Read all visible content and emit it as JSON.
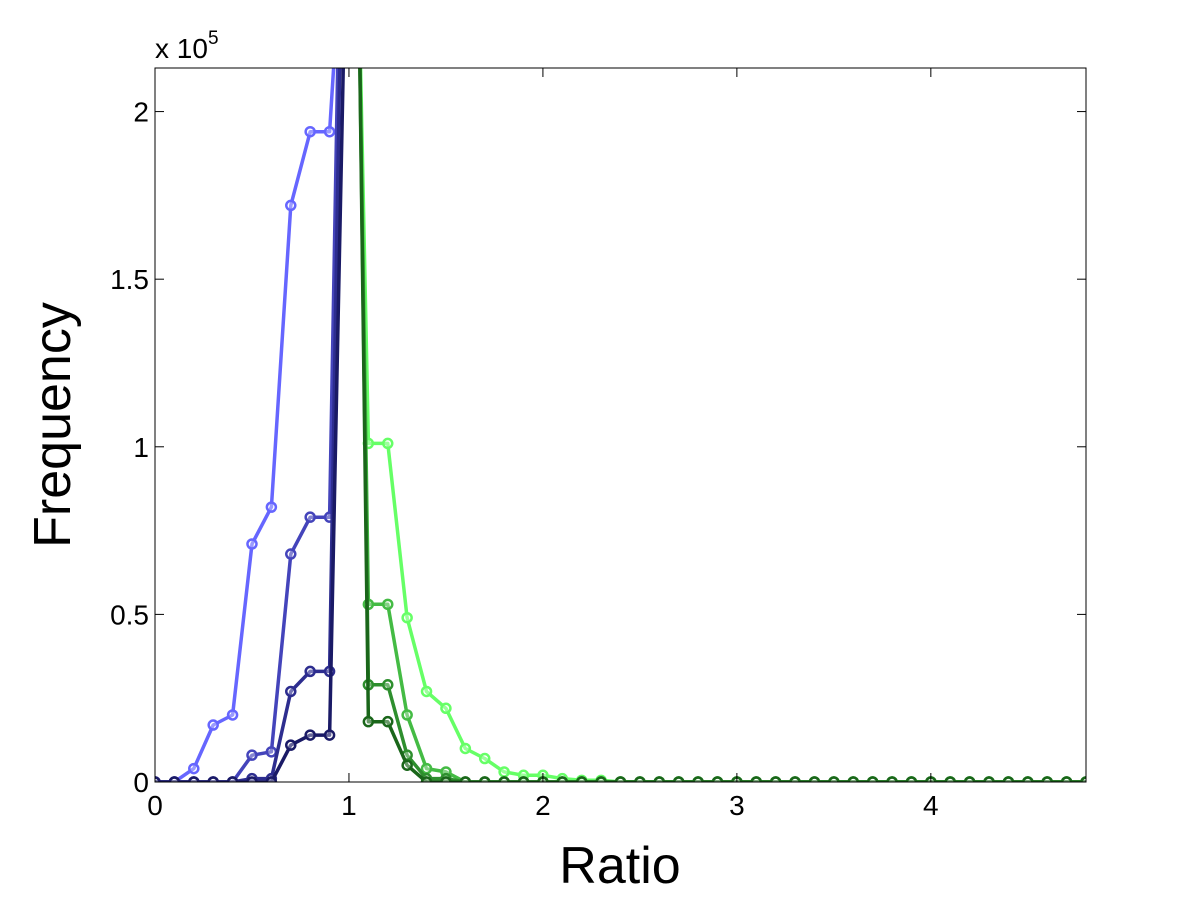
{
  "chart_data": {
    "type": "line",
    "title": "",
    "xlabel": "Ratio",
    "ylabel": "Frequency",
    "y_multiplier": {
      "base": "x 10",
      "exponent": "5"
    },
    "xlim": [
      0,
      4.8
    ],
    "ylim": [
      0,
      2.13
    ],
    "x_ticks": [
      0,
      1,
      2,
      3,
      4
    ],
    "x_tick_labels": [
      "0",
      "1",
      "2",
      "3",
      "4"
    ],
    "y_ticks": [
      0,
      0.5,
      1,
      1.5,
      2
    ],
    "y_tick_labels": [
      "0",
      "0.5",
      "1",
      "1.5",
      "2"
    ],
    "grid": false,
    "legend": "none",
    "series": [
      {
        "color": "#6666ff",
        "x": [
          0,
          0.1,
          0.2,
          0.3,
          0.4,
          0.5,
          0.6,
          0.7,
          0.8,
          0.9,
          0.95
        ],
        "y": [
          0,
          0,
          0.04,
          0.17,
          0.2,
          0.71,
          0.82,
          1.72,
          1.94,
          1.94,
          2.4
        ]
      },
      {
        "color": "#4444bb",
        "x": [
          0,
          0.1,
          0.2,
          0.3,
          0.4,
          0.5,
          0.6,
          0.7,
          0.8,
          0.9,
          0.95
        ],
        "y": [
          0,
          0,
          0,
          0,
          0,
          0.08,
          0.09,
          0.68,
          0.79,
          0.79,
          2.4
        ]
      },
      {
        "color": "#2d2d8f",
        "x": [
          0,
          0.1,
          0.2,
          0.3,
          0.4,
          0.5,
          0.6,
          0.7,
          0.8,
          0.9,
          0.96
        ],
        "y": [
          0,
          0,
          0,
          0,
          0,
          0.01,
          0.01,
          0.27,
          0.33,
          0.33,
          2.4
        ]
      },
      {
        "color": "#1a1a66",
        "x": [
          0,
          0.1,
          0.2,
          0.3,
          0.4,
          0.5,
          0.6,
          0.7,
          0.8,
          0.9,
          0.98
        ],
        "y": [
          0,
          0,
          0,
          0,
          0,
          0,
          0,
          0.11,
          0.14,
          0.14,
          2.4
        ]
      },
      {
        "color": "#66ff66",
        "x": [
          1.05,
          1.1,
          1.2,
          1.3,
          1.4,
          1.5,
          1.6,
          1.7,
          1.8,
          1.9,
          2.0,
          2.1,
          2.2,
          2.3,
          2.4,
          2.5,
          2.6,
          2.7,
          2.8,
          2.9,
          3.0,
          3.1,
          3.2,
          3.3,
          3.4,
          3.5,
          3.6,
          3.7,
          3.8,
          3.9,
          4.0,
          4.1,
          4.2,
          4.3,
          4.4,
          4.5,
          4.6,
          4.7,
          4.8
        ],
        "y": [
          2.4,
          1.01,
          1.01,
          0.49,
          0.27,
          0.22,
          0.1,
          0.07,
          0.03,
          0.02,
          0.02,
          0.01,
          0.005,
          0.005,
          0,
          0,
          0,
          0,
          0,
          0,
          0,
          0,
          0,
          0,
          0,
          0,
          0,
          0,
          0,
          0,
          0,
          0,
          0,
          0,
          0,
          0,
          0,
          0,
          0
        ]
      },
      {
        "color": "#44bb44",
        "x": [
          1.05,
          1.1,
          1.2,
          1.3,
          1.4,
          1.5,
          1.6,
          1.7,
          1.8,
          1.9,
          2.0,
          2.1,
          2.2,
          2.3,
          2.4,
          2.5,
          2.6,
          2.7,
          2.8,
          2.9,
          3.0,
          3.1,
          3.2,
          3.3,
          3.4,
          3.5,
          3.6,
          3.7,
          3.8,
          3.9,
          4.0,
          4.1,
          4.2,
          4.3,
          4.4,
          4.5,
          4.6,
          4.7,
          4.8
        ],
        "y": [
          2.4,
          0.53,
          0.53,
          0.2,
          0.04,
          0.03,
          0,
          0,
          0,
          0,
          0,
          0,
          0,
          0,
          0,
          0,
          0,
          0,
          0,
          0,
          0,
          0,
          0,
          0,
          0,
          0,
          0,
          0,
          0,
          0,
          0,
          0,
          0,
          0,
          0,
          0,
          0,
          0,
          0
        ]
      },
      {
        "color": "#2e8f2e",
        "x": [
          1.05,
          1.1,
          1.2,
          1.3,
          1.4,
          1.5,
          1.6,
          1.7,
          1.8,
          1.9,
          2.0,
          2.1,
          2.2,
          2.3,
          2.4,
          2.5,
          2.6,
          2.7,
          2.8,
          2.9,
          3.0,
          3.1,
          3.2,
          3.3,
          3.4,
          3.5,
          3.6,
          3.7,
          3.8,
          3.9,
          4.0,
          4.1,
          4.2,
          4.3,
          4.4,
          4.5,
          4.6,
          4.7,
          4.8
        ],
        "y": [
          2.4,
          0.29,
          0.29,
          0.08,
          0.01,
          0.01,
          0,
          0,
          0,
          0,
          0,
          0,
          0,
          0,
          0,
          0,
          0,
          0,
          0,
          0,
          0,
          0,
          0,
          0,
          0,
          0,
          0,
          0,
          0,
          0,
          0,
          0,
          0,
          0,
          0,
          0,
          0,
          0,
          0
        ]
      },
      {
        "color": "#1a661a",
        "x": [
          1.05,
          1.1,
          1.2,
          1.3,
          1.4,
          1.5,
          1.6,
          1.7,
          1.8,
          1.9,
          2.0,
          2.1,
          2.2,
          2.3,
          2.4,
          2.5,
          2.6,
          2.7,
          2.8,
          2.9,
          3.0,
          3.1,
          3.2,
          3.3,
          3.4,
          3.5,
          3.6,
          3.7,
          3.8,
          3.9,
          4.0,
          4.1,
          4.2,
          4.3,
          4.4,
          4.5,
          4.6,
          4.7,
          4.8
        ],
        "y": [
          2.4,
          0.18,
          0.18,
          0.05,
          0,
          0,
          0,
          0,
          0,
          0,
          0,
          0,
          0,
          0,
          0,
          0,
          0,
          0,
          0,
          0,
          0,
          0,
          0,
          0,
          0,
          0,
          0,
          0,
          0,
          0,
          0,
          0,
          0,
          0,
          0,
          0,
          0,
          0,
          0
        ]
      }
    ]
  }
}
